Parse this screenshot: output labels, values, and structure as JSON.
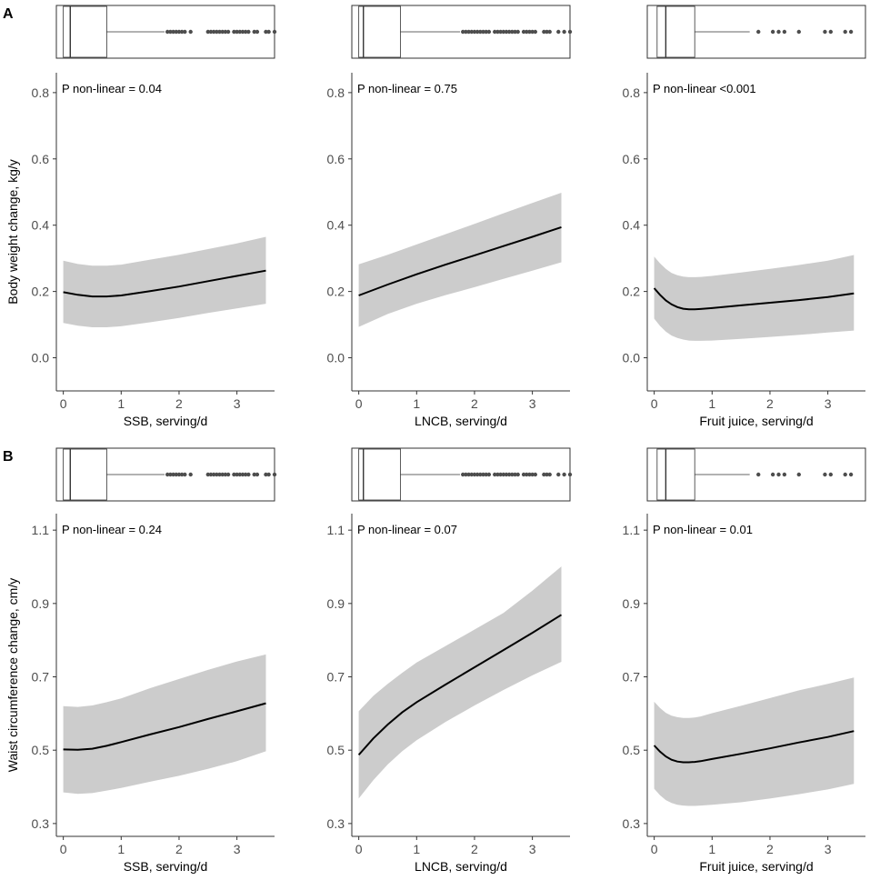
{
  "figure": {
    "colors": {
      "band": "#cccccc",
      "line": "#000000",
      "axis": "#333333",
      "outlier": "#4d4d4d"
    }
  },
  "chart_data": [
    {
      "panel": "A",
      "type": "line",
      "title": "",
      "xlabel": "SSB, serving/d",
      "ylabel": "Body weight change, kg/y",
      "annotation": "P non-linear = 0.04",
      "xlim": [
        -0.12,
        3.65
      ],
      "ylim": [
        -0.1,
        0.86
      ],
      "xticks": [
        0,
        1,
        2,
        3
      ],
      "yticks": [
        0.0,
        0.2,
        0.4,
        0.6,
        0.8
      ],
      "ytick_decimals": 1,
      "series": [
        {
          "name": "estimate",
          "x": [
            0,
            0.25,
            0.5,
            0.75,
            1.0,
            1.5,
            2.0,
            2.5,
            3.0,
            3.5
          ],
          "y": [
            0.198,
            0.19,
            0.185,
            0.185,
            0.188,
            0.201,
            0.215,
            0.231,
            0.247,
            0.263
          ],
          "lower": [
            0.105,
            0.097,
            0.092,
            0.092,
            0.095,
            0.107,
            0.12,
            0.135,
            0.149,
            0.163
          ],
          "upper": [
            0.293,
            0.283,
            0.278,
            0.278,
            0.281,
            0.296,
            0.311,
            0.328,
            0.345,
            0.365
          ]
        }
      ],
      "boxplot": {
        "min": 0,
        "q1": 0.0,
        "median": 0.12,
        "q3": 0.75,
        "whisker_high": 1.75,
        "outliers": [
          1.8,
          1.85,
          1.9,
          1.95,
          2.0,
          2.05,
          2.1,
          2.2,
          2.5,
          2.55,
          2.6,
          2.65,
          2.7,
          2.75,
          2.8,
          2.85,
          2.95,
          3.0,
          3.05,
          3.1,
          3.15,
          3.2,
          3.3,
          3.35,
          3.5,
          3.55,
          3.65
        ]
      }
    },
    {
      "panel": "",
      "type": "line",
      "title": "",
      "xlabel": "LNCB, serving/d",
      "ylabel": "",
      "annotation": "P non-linear = 0.75",
      "xlim": [
        -0.12,
        3.65
      ],
      "ylim": [
        -0.1,
        0.86
      ],
      "xticks": [
        0,
        1,
        2,
        3
      ],
      "yticks": [
        0.0,
        0.2,
        0.4,
        0.6,
        0.8
      ],
      "ytick_decimals": 1,
      "series": [
        {
          "name": "estimate",
          "x": [
            0,
            0.5,
            1.0,
            1.5,
            2.0,
            2.5,
            3.0,
            3.5
          ],
          "y": [
            0.188,
            0.221,
            0.252,
            0.281,
            0.309,
            0.337,
            0.365,
            0.394
          ],
          "lower": [
            0.093,
            0.132,
            0.163,
            0.189,
            0.213,
            0.238,
            0.263,
            0.288
          ],
          "upper": [
            0.282,
            0.311,
            0.342,
            0.373,
            0.404,
            0.436,
            0.467,
            0.498
          ]
        }
      ],
      "boxplot": {
        "min": 0,
        "q1": 0.0,
        "median": 0.08,
        "q3": 0.72,
        "whisker_high": 1.75,
        "outliers": [
          1.8,
          1.85,
          1.9,
          1.95,
          2.0,
          2.05,
          2.1,
          2.15,
          2.2,
          2.25,
          2.35,
          2.4,
          2.45,
          2.5,
          2.55,
          2.6,
          2.65,
          2.7,
          2.75,
          2.85,
          2.9,
          2.95,
          3.0,
          3.05,
          3.2,
          3.25,
          3.3,
          3.45,
          3.55,
          3.65
        ]
      }
    },
    {
      "panel": "",
      "type": "line",
      "title": "",
      "xlabel": "Fruit juice, serving/d",
      "ylabel": "",
      "annotation": "P non-linear <0.001",
      "xlim": [
        -0.12,
        3.65
      ],
      "ylim": [
        -0.1,
        0.86
      ],
      "xticks": [
        0,
        1,
        2,
        3
      ],
      "yticks": [
        0.0,
        0.2,
        0.4,
        0.6,
        0.8
      ],
      "ytick_decimals": 1,
      "series": [
        {
          "name": "estimate",
          "x": [
            0,
            0.1,
            0.2,
            0.3,
            0.4,
            0.5,
            0.6,
            0.7,
            0.8,
            1.0,
            1.5,
            2.0,
            2.5,
            3.0,
            3.45
          ],
          "y": [
            0.21,
            0.19,
            0.173,
            0.161,
            0.153,
            0.148,
            0.146,
            0.146,
            0.147,
            0.15,
            0.158,
            0.166,
            0.174,
            0.183,
            0.194
          ],
          "lower": [
            0.118,
            0.096,
            0.079,
            0.067,
            0.06,
            0.055,
            0.052,
            0.051,
            0.051,
            0.052,
            0.057,
            0.063,
            0.069,
            0.076,
            0.082
          ],
          "upper": [
            0.305,
            0.285,
            0.268,
            0.256,
            0.249,
            0.245,
            0.243,
            0.243,
            0.244,
            0.247,
            0.257,
            0.268,
            0.28,
            0.293,
            0.31
          ]
        }
      ],
      "boxplot": {
        "min": 0,
        "q1": 0.05,
        "median": 0.2,
        "q3": 0.7,
        "whisker_high": 1.65,
        "outliers": [
          1.8,
          2.05,
          2.15,
          2.25,
          2.5,
          2.95,
          3.05,
          3.3,
          3.4
        ]
      }
    },
    {
      "panel": "B",
      "type": "line",
      "title": "",
      "xlabel": "SSB, serving/d",
      "ylabel": "Waist circumference change, cm/y",
      "annotation": "P non-linear = 0.24",
      "xlim": [
        -0.12,
        3.65
      ],
      "ylim": [
        0.265,
        1.145
      ],
      "xticks": [
        0,
        1,
        2,
        3
      ],
      "yticks": [
        0.3,
        0.5,
        0.7,
        0.9,
        1.1
      ],
      "ytick_decimals": 1,
      "series": [
        {
          "name": "estimate",
          "x": [
            0,
            0.25,
            0.5,
            0.75,
            1.0,
            1.5,
            2.0,
            2.5,
            3.0,
            3.5
          ],
          "y": [
            0.502,
            0.501,
            0.504,
            0.512,
            0.522,
            0.543,
            0.563,
            0.585,
            0.606,
            0.628
          ],
          "lower": [
            0.385,
            0.381,
            0.383,
            0.39,
            0.397,
            0.414,
            0.43,
            0.449,
            0.47,
            0.497
          ],
          "upper": [
            0.62,
            0.618,
            0.622,
            0.631,
            0.641,
            0.669,
            0.694,
            0.719,
            0.742,
            0.761
          ]
        }
      ],
      "boxplot": {
        "min": 0,
        "q1": 0.0,
        "median": 0.12,
        "q3": 0.75,
        "whisker_high": 1.75,
        "outliers": [
          1.8,
          1.85,
          1.9,
          1.95,
          2.0,
          2.05,
          2.1,
          2.2,
          2.5,
          2.55,
          2.6,
          2.65,
          2.7,
          2.75,
          2.8,
          2.85,
          2.95,
          3.0,
          3.05,
          3.1,
          3.15,
          3.2,
          3.3,
          3.35,
          3.5,
          3.55,
          3.65
        ]
      }
    },
    {
      "panel": "",
      "type": "line",
      "title": "",
      "xlabel": "LNCB, serving/d",
      "ylabel": "",
      "annotation": "P non-linear = 0.07",
      "xlim": [
        -0.12,
        3.65
      ],
      "ylim": [
        0.265,
        1.145
      ],
      "xticks": [
        0,
        1,
        2,
        3
      ],
      "yticks": [
        0.3,
        0.5,
        0.7,
        0.9,
        1.1
      ],
      "ytick_decimals": 1,
      "series": [
        {
          "name": "estimate",
          "x": [
            0,
            0.25,
            0.5,
            0.75,
            1.0,
            1.5,
            2.0,
            2.5,
            3.0,
            3.5
          ],
          "y": [
            0.487,
            0.532,
            0.57,
            0.603,
            0.631,
            0.679,
            0.726,
            0.773,
            0.82,
            0.869
          ],
          "lower": [
            0.368,
            0.418,
            0.461,
            0.497,
            0.527,
            0.577,
            0.622,
            0.664,
            0.704,
            0.741
          ],
          "upper": [
            0.606,
            0.648,
            0.681,
            0.711,
            0.739,
            0.784,
            0.829,
            0.874,
            0.935,
            1.001
          ]
        }
      ],
      "boxplot": {
        "min": 0,
        "q1": 0.0,
        "median": 0.08,
        "q3": 0.72,
        "whisker_high": 1.75,
        "outliers": [
          1.8,
          1.85,
          1.9,
          1.95,
          2.0,
          2.05,
          2.1,
          2.15,
          2.2,
          2.25,
          2.35,
          2.4,
          2.45,
          2.5,
          2.55,
          2.6,
          2.65,
          2.7,
          2.75,
          2.85,
          2.9,
          2.95,
          3.0,
          3.05,
          3.2,
          3.25,
          3.3,
          3.45,
          3.55,
          3.65
        ]
      }
    },
    {
      "panel": "",
      "type": "line",
      "title": "",
      "xlabel": "Fruit juice, serving/d",
      "ylabel": "",
      "annotation": "P non-linear = 0.01",
      "xlim": [
        -0.12,
        3.65
      ],
      "ylim": [
        0.265,
        1.145
      ],
      "xticks": [
        0,
        1,
        2,
        3
      ],
      "yticks": [
        0.3,
        0.5,
        0.7,
        0.9,
        1.1
      ],
      "ytick_decimals": 1,
      "series": [
        {
          "name": "estimate",
          "x": [
            0,
            0.1,
            0.2,
            0.3,
            0.4,
            0.5,
            0.6,
            0.7,
            0.8,
            1.0,
            1.5,
            2.0,
            2.5,
            3.0,
            3.45
          ],
          "y": [
            0.513,
            0.496,
            0.483,
            0.474,
            0.469,
            0.467,
            0.467,
            0.468,
            0.47,
            0.476,
            0.49,
            0.505,
            0.521,
            0.536,
            0.552
          ],
          "lower": [
            0.395,
            0.377,
            0.364,
            0.356,
            0.351,
            0.349,
            0.348,
            0.348,
            0.349,
            0.351,
            0.358,
            0.368,
            0.38,
            0.393,
            0.408
          ],
          "upper": [
            0.632,
            0.615,
            0.602,
            0.594,
            0.59,
            0.588,
            0.588,
            0.589,
            0.592,
            0.601,
            0.621,
            0.642,
            0.663,
            0.681,
            0.698
          ]
        }
      ],
      "boxplot": {
        "min": 0,
        "q1": 0.05,
        "median": 0.2,
        "q3": 0.7,
        "whisker_high": 1.65,
        "outliers": [
          1.8,
          2.05,
          2.15,
          2.25,
          2.5,
          2.95,
          3.05,
          3.3,
          3.4
        ]
      }
    }
  ]
}
